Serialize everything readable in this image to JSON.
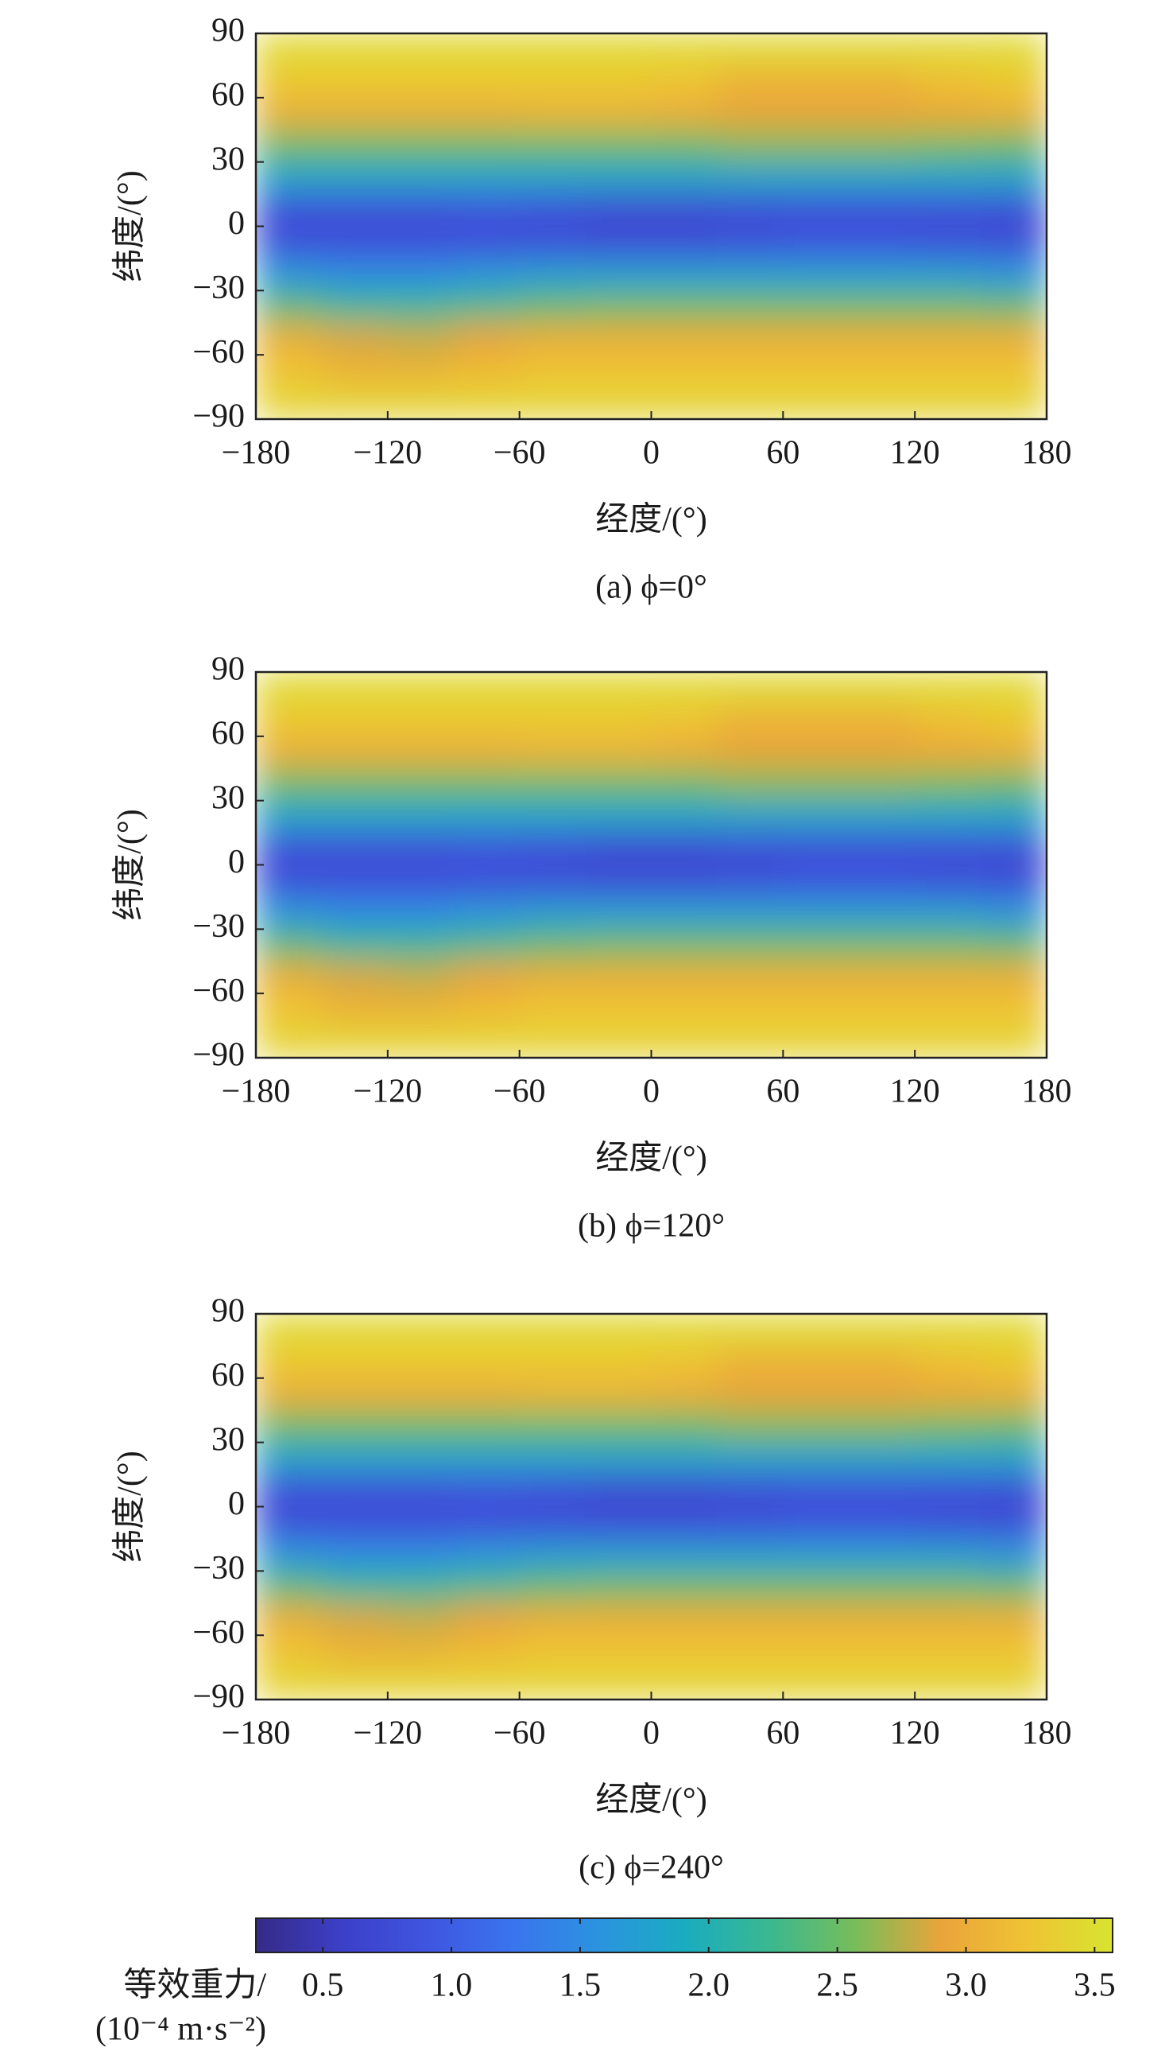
{
  "chart_data": [
    {
      "type": "heatmap",
      "caption": "(a) ϕ=0°",
      "xlabel": "经度/(°)",
      "ylabel": "纬度/(°)",
      "xlim": [
        -180,
        180
      ],
      "ylim": [
        -90,
        90
      ],
      "xticks": [
        {
          "value": -180,
          "label": "−180"
        },
        {
          "value": -120,
          "label": "−120"
        },
        {
          "value": -60,
          "label": "−60"
        },
        0,
        60,
        120,
        180
      ],
      "yticks": [
        {
          "value": -90,
          "label": "−90"
        },
        {
          "value": -60,
          "label": "−60"
        },
        {
          "value": -30,
          "label": "−30"
        },
        0,
        30,
        60,
        90
      ],
      "x": [
        -165,
        -135,
        -105,
        -75,
        -45,
        -15,
        15,
        45,
        75,
        105,
        135,
        165
      ],
      "y": [
        82.5,
        67.5,
        52.5,
        37.5,
        22.5,
        7.5,
        -7.5,
        -22.5,
        -37.5,
        -52.5,
        -67.5,
        -82.5
      ],
      "z": [
        [
          3.45,
          3.45,
          3.45,
          3.45,
          3.45,
          3.45,
          3.45,
          3.45,
          3.45,
          3.45,
          3.45,
          3.45
        ],
        [
          3.3,
          3.3,
          3.3,
          3.3,
          3.3,
          3.3,
          3.25,
          3.05,
          3.05,
          3.05,
          3.2,
          3.3
        ],
        [
          3.0,
          3.0,
          3.0,
          3.0,
          3.05,
          3.05,
          3.0,
          2.9,
          2.9,
          2.9,
          2.95,
          3.0
        ],
        [
          2.5,
          2.5,
          2.5,
          2.5,
          2.5,
          2.5,
          2.5,
          2.6,
          2.6,
          2.6,
          2.55,
          2.5
        ],
        [
          1.8,
          1.8,
          1.8,
          1.8,
          1.8,
          1.8,
          1.8,
          1.8,
          1.8,
          1.8,
          1.8,
          1.8
        ],
        [
          0.8,
          0.8,
          0.8,
          0.85,
          0.8,
          0.7,
          0.7,
          0.75,
          0.8,
          0.8,
          0.8,
          0.75
        ],
        [
          0.8,
          0.8,
          0.8,
          0.8,
          0.8,
          0.75,
          0.75,
          0.8,
          0.85,
          0.85,
          0.8,
          0.75
        ],
        [
          1.6,
          1.5,
          1.5,
          1.6,
          1.7,
          1.7,
          1.7,
          1.7,
          1.7,
          1.7,
          1.7,
          1.6
        ],
        [
          2.4,
          2.2,
          2.2,
          2.3,
          2.45,
          2.5,
          2.5,
          2.5,
          2.5,
          2.5,
          2.5,
          2.45
        ],
        [
          3.0,
          2.85,
          2.8,
          2.9,
          3.0,
          3.0,
          3.0,
          3.0,
          3.0,
          3.0,
          3.0,
          3.0
        ],
        [
          3.25,
          3.05,
          3.05,
          3.15,
          3.25,
          3.25,
          3.25,
          3.25,
          3.25,
          3.25,
          3.25,
          3.25
        ],
        [
          3.4,
          3.4,
          3.4,
          3.4,
          3.4,
          3.4,
          3.4,
          3.4,
          3.4,
          3.4,
          3.4,
          3.4
        ]
      ]
    },
    {
      "type": "heatmap",
      "caption": "(b) ϕ=120°",
      "xlabel": "经度/(°)",
      "ylabel": "纬度/(°)",
      "xlim": [
        -180,
        180
      ],
      "ylim": [
        -90,
        90
      ],
      "xticks": [
        {
          "value": -180,
          "label": "−180"
        },
        {
          "value": -120,
          "label": "−120"
        },
        {
          "value": -60,
          "label": "−60"
        },
        0,
        60,
        120,
        180
      ],
      "yticks": [
        {
          "value": -90,
          "label": "−90"
        },
        {
          "value": -60,
          "label": "−60"
        },
        {
          "value": -30,
          "label": "−30"
        },
        0,
        30,
        60,
        90
      ],
      "x": [
        -165,
        -135,
        -105,
        -75,
        -45,
        -15,
        15,
        45,
        75,
        105,
        135,
        165
      ],
      "y": [
        82.5,
        67.5,
        52.5,
        37.5,
        22.5,
        7.5,
        -7.5,
        -22.5,
        -37.5,
        -52.5,
        -67.5,
        -82.5
      ],
      "z": [
        [
          3.45,
          3.45,
          3.45,
          3.45,
          3.45,
          3.45,
          3.45,
          3.45,
          3.45,
          3.45,
          3.45,
          3.45
        ],
        [
          3.3,
          3.3,
          3.3,
          3.3,
          3.3,
          3.3,
          3.25,
          3.05,
          3.05,
          3.05,
          3.2,
          3.3
        ],
        [
          3.0,
          3.0,
          3.0,
          3.0,
          3.05,
          3.05,
          3.0,
          2.9,
          2.9,
          2.9,
          2.95,
          3.0
        ],
        [
          2.5,
          2.5,
          2.5,
          2.5,
          2.5,
          2.5,
          2.5,
          2.6,
          2.6,
          2.6,
          2.55,
          2.5
        ],
        [
          1.8,
          1.8,
          1.8,
          1.8,
          1.8,
          1.8,
          1.8,
          1.8,
          1.8,
          1.8,
          1.8,
          1.8
        ],
        [
          0.8,
          0.8,
          0.8,
          0.85,
          0.8,
          0.7,
          0.7,
          0.75,
          0.8,
          0.8,
          0.8,
          0.75
        ],
        [
          0.8,
          0.8,
          0.8,
          0.8,
          0.8,
          0.75,
          0.75,
          0.8,
          0.85,
          0.85,
          0.8,
          0.75
        ],
        [
          1.6,
          1.5,
          1.5,
          1.6,
          1.7,
          1.7,
          1.7,
          1.7,
          1.7,
          1.7,
          1.7,
          1.6
        ],
        [
          2.4,
          2.2,
          2.2,
          2.3,
          2.45,
          2.5,
          2.5,
          2.5,
          2.5,
          2.5,
          2.5,
          2.45
        ],
        [
          3.0,
          2.85,
          2.8,
          2.9,
          3.0,
          3.0,
          3.0,
          3.0,
          3.0,
          3.0,
          3.0,
          3.0
        ],
        [
          3.25,
          3.05,
          3.05,
          3.15,
          3.25,
          3.25,
          3.25,
          3.25,
          3.25,
          3.25,
          3.25,
          3.25
        ],
        [
          3.4,
          3.4,
          3.4,
          3.4,
          3.4,
          3.4,
          3.4,
          3.4,
          3.4,
          3.4,
          3.4,
          3.4
        ]
      ]
    },
    {
      "type": "heatmap",
      "caption": "(c) ϕ=240°",
      "xlabel": "经度/(°)",
      "ylabel": "纬度/(°)",
      "xlim": [
        -180,
        180
      ],
      "ylim": [
        -90,
        90
      ],
      "xticks": [
        {
          "value": -180,
          "label": "−180"
        },
        {
          "value": -120,
          "label": "−120"
        },
        {
          "value": -60,
          "label": "−60"
        },
        0,
        60,
        120,
        180
      ],
      "yticks": [
        {
          "value": -90,
          "label": "−90"
        },
        {
          "value": -60,
          "label": "−60"
        },
        {
          "value": -30,
          "label": "−30"
        },
        0,
        30,
        60,
        90
      ],
      "x": [
        -165,
        -135,
        -105,
        -75,
        -45,
        -15,
        15,
        45,
        75,
        105,
        135,
        165
      ],
      "y": [
        82.5,
        67.5,
        52.5,
        37.5,
        22.5,
        7.5,
        -7.5,
        -22.5,
        -37.5,
        -52.5,
        -67.5,
        -82.5
      ],
      "z": [
        [
          3.45,
          3.45,
          3.45,
          3.45,
          3.45,
          3.45,
          3.45,
          3.45,
          3.45,
          3.45,
          3.45,
          3.45
        ],
        [
          3.3,
          3.3,
          3.3,
          3.3,
          3.3,
          3.3,
          3.25,
          3.05,
          3.05,
          3.05,
          3.2,
          3.3
        ],
        [
          3.0,
          3.0,
          3.0,
          3.0,
          3.05,
          3.05,
          3.0,
          2.9,
          2.9,
          2.9,
          2.95,
          3.0
        ],
        [
          2.5,
          2.5,
          2.5,
          2.5,
          2.5,
          2.5,
          2.5,
          2.6,
          2.6,
          2.6,
          2.55,
          2.5
        ],
        [
          1.8,
          1.8,
          1.8,
          1.8,
          1.8,
          1.8,
          1.8,
          1.8,
          1.8,
          1.8,
          1.8,
          1.8
        ],
        [
          0.8,
          0.8,
          0.8,
          0.85,
          0.8,
          0.7,
          0.7,
          0.75,
          0.8,
          0.8,
          0.8,
          0.75
        ],
        [
          0.8,
          0.8,
          0.8,
          0.8,
          0.8,
          0.75,
          0.75,
          0.8,
          0.85,
          0.85,
          0.8,
          0.75
        ],
        [
          1.6,
          1.5,
          1.5,
          1.6,
          1.7,
          1.7,
          1.7,
          1.7,
          1.7,
          1.7,
          1.7,
          1.6
        ],
        [
          2.4,
          2.2,
          2.2,
          2.3,
          2.45,
          2.5,
          2.5,
          2.5,
          2.5,
          2.5,
          2.5,
          2.45
        ],
        [
          3.0,
          2.85,
          2.8,
          2.9,
          3.0,
          3.0,
          3.0,
          3.0,
          3.0,
          3.0,
          3.0,
          3.0
        ],
        [
          3.25,
          3.05,
          3.05,
          3.15,
          3.25,
          3.25,
          3.25,
          3.25,
          3.25,
          3.25,
          3.25,
          3.25
        ],
        [
          3.4,
          3.4,
          3.4,
          3.4,
          3.4,
          3.4,
          3.4,
          3.4,
          3.4,
          3.4,
          3.4,
          3.4
        ]
      ]
    }
  ],
  "colorbar": {
    "label": [
      "等效重力/",
      "(10⁻⁴ m·s⁻²)"
    ],
    "lim": [
      0.24,
      3.57
    ],
    "ticks": [
      0.5,
      {
        "value": 1,
        "label": "1.0"
      },
      1.5,
      {
        "value": 2,
        "label": "2.0"
      },
      2.5,
      {
        "value": 3,
        "label": "3.0"
      },
      3.5
    ],
    "colormap": [
      "#352a87",
      "#3c3fc8",
      "#3f55e0",
      "#3a74ee",
      "#2b93e0",
      "#1aacc0",
      "#3ab890",
      "#78bd5a",
      "#eaa43a",
      "#efc334",
      "#d8e430"
    ]
  }
}
